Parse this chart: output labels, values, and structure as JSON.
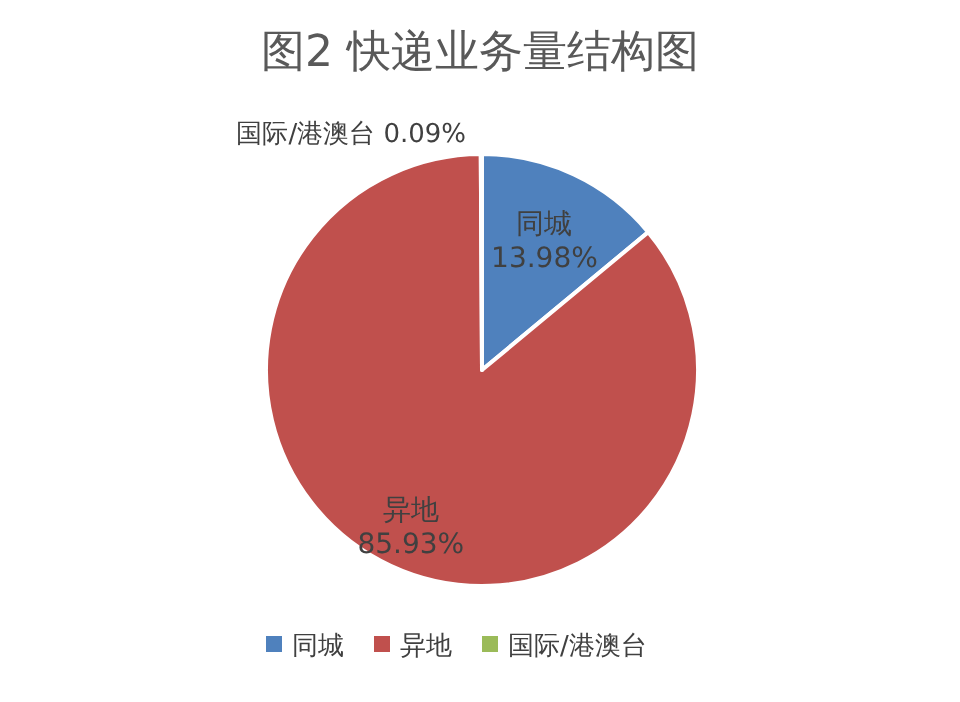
{
  "chart_data": {
    "type": "pie",
    "title": "图2  快递业务量结构图",
    "categories": [
      "同城",
      "异地",
      "国际/港澳台"
    ],
    "values": [
      13.98,
      85.93,
      0.09
    ],
    "value_labels": [
      "13.98%",
      "85.93%",
      "0.09%"
    ],
    "colors": [
      "#4f81bd",
      "#c0504d",
      "#9bbb59"
    ],
    "legend": "bottom"
  }
}
